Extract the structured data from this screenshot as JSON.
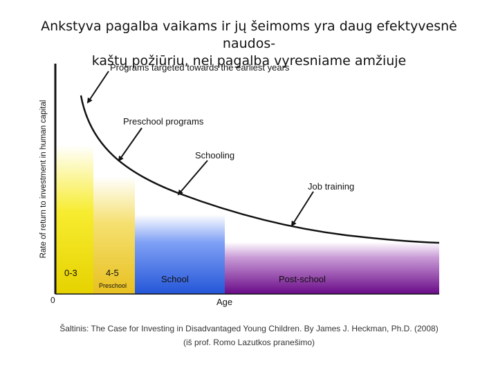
{
  "slide": {
    "title_line1": "Ankstyva pagalba vaikams ir jų šeimoms yra daug efektyvesnė naudos-",
    "title_line2": "kaštų požiūriu, nei pagalba vyresniame amžiuje",
    "source_line1": "Šaltinis: The Case for Investing in Disadvantaged Young Children. By James J. Heckman, Ph.D. (2008)",
    "source_line2": "(iš prof. Romo Lazutkos pranešimo)"
  },
  "chart_data": {
    "type": "area",
    "title": "",
    "xlabel": "Age",
    "ylabel": "Rate of return to investment in human capital",
    "origin_label": "0",
    "grid": false,
    "stages": [
      {
        "label": "0-3",
        "sublabel": "",
        "color": "#f2e400"
      },
      {
        "label": "4-5",
        "sublabel": "Preschool",
        "color": "#f0d040"
      },
      {
        "label": "School",
        "sublabel": "",
        "color": "#3a6ee0"
      },
      {
        "label": "Post-school",
        "sublabel": "",
        "color": "#7a1090"
      }
    ],
    "annotations": [
      {
        "text": "Programs targeted towards the earliest years"
      },
      {
        "text": "Preschool programs"
      },
      {
        "text": "Schooling"
      },
      {
        "text": "Job training"
      }
    ]
  }
}
